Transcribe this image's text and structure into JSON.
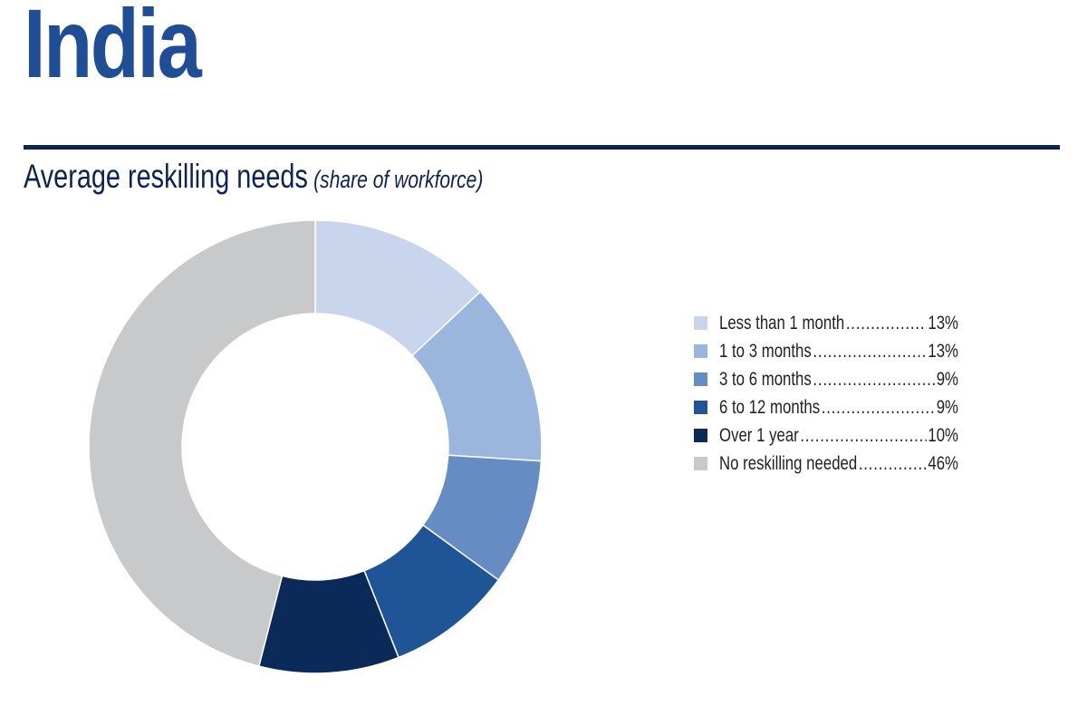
{
  "header": {
    "country": "India",
    "chart_title": "Average reskilling needs",
    "chart_subtitle": "(share of workforce)"
  },
  "colors": {
    "country_title": "#1f4e96",
    "rule": "#0b2454",
    "chart_title": "#0b2454"
  },
  "chart_data": {
    "type": "pie",
    "title": "Average reskilling needs",
    "subtitle": "(share of workforce)",
    "legend_position": "right",
    "categories": [
      "Less than 1 month",
      "1 to 3 months",
      "3 to 6 months",
      "6 to 12 months",
      "Over 1 year",
      "No reskilling needed"
    ],
    "values": [
      13,
      13,
      9,
      9,
      10,
      46
    ],
    "value_labels": [
      "13%",
      "13%",
      "9%",
      "9%",
      "10%",
      "46%"
    ],
    "colors": [
      "#c8d5ec",
      "#9bb6dc",
      "#668cc4",
      "#1f5497",
      "#0b2a5a",
      "#c8c9cb"
    ]
  }
}
